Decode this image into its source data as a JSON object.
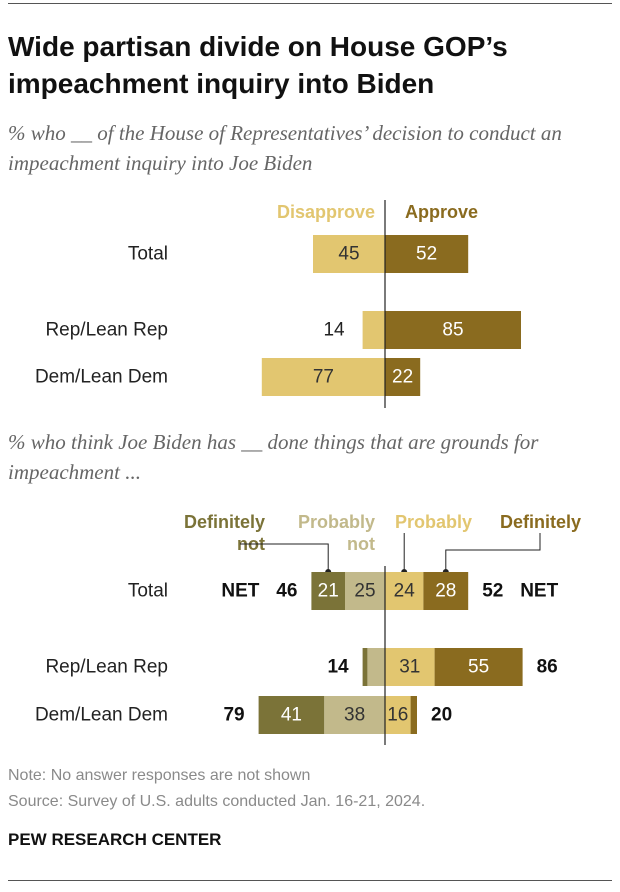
{
  "title": "Wide partisan divide on House GOP’s impeachment inquiry into Biden",
  "subtitle1": "% who __ of the House of Representatives’ decision to conduct an impeachment inquiry into Joe Biden",
  "subtitle2": "% who think Joe Biden has __ done things that are grounds for impeachment ...",
  "colors": {
    "disapprove": "#e2c670",
    "approve": "#8a6b1f",
    "definitely_not": "#7b7338",
    "probably_not": "#c2b98b",
    "probably": "#e2c670",
    "definitely": "#8a6b1f"
  },
  "chart_data": [
    {
      "type": "bar",
      "orientation": "horizontal-diverging",
      "categories": [
        "Total",
        "Rep/Lean Rep",
        "Dem/Lean Dem"
      ],
      "series": [
        {
          "name": "Disapprove",
          "values": [
            45,
            14,
            77
          ]
        },
        {
          "name": "Approve",
          "values": [
            52,
            85,
            22
          ]
        }
      ]
    },
    {
      "type": "bar",
      "orientation": "horizontal-diverging-stacked",
      "categories": [
        "Total",
        "Rep/Lean Rep",
        "Dem/Lean Dem"
      ],
      "net_label": "NET",
      "series": [
        {
          "name": "Definitely not",
          "values": [
            21,
            3,
            41
          ]
        },
        {
          "name": "Probably not",
          "values": [
            25,
            11,
            38
          ]
        },
        {
          "name": "Probably",
          "values": [
            24,
            31,
            16
          ]
        },
        {
          "name": "Definitely",
          "values": [
            28,
            55,
            4
          ]
        }
      ],
      "segment_labels": {
        "Definitely not": [
          "21",
          "",
          "41"
        ],
        "Probably not": [
          "25",
          "",
          "38"
        ],
        "Probably": [
          "24",
          "31",
          "16"
        ],
        "Definitely": [
          "28",
          "55",
          ""
        ]
      },
      "net_not": [
        "46",
        "14",
        "79"
      ],
      "net_yes": [
        "52",
        "86",
        "20"
      ]
    }
  ],
  "note": "Note: No answer responses are not shown",
  "source": "Source: Survey of U.S. adults conducted Jan. 16-21, 2024.",
  "brand": "PEW RESEARCH CENTER"
}
